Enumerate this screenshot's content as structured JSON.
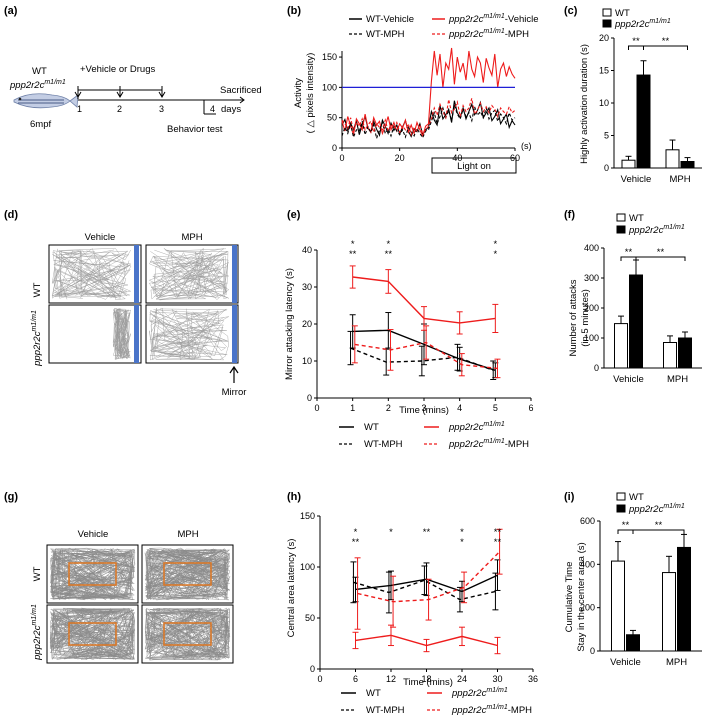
{
  "panel_labels": [
    "(a)",
    "(b)",
    "(c)",
    "(d)",
    "(e)",
    "(f)",
    "(g)",
    "(h)",
    "(i)"
  ],
  "timeline": {
    "genotype_line1": "WT",
    "genotype_line2_base": "ppp2r2c",
    "genotype_line2_sup": "m1/m1",
    "age": "6mpf",
    "treatment": "+Vehicle or Drugs",
    "sacrificed": "Sacrificed",
    "behavior": "Behavior test",
    "days_label": "days",
    "day_ticks": [
      "1",
      "2",
      "3",
      "4"
    ]
  },
  "colors": {
    "wt": "#000000",
    "mut": "#ee1c1c",
    "threshold": "#1f1fd6",
    "mirror": "#4a74c9",
    "center_box": "#d9792a",
    "track": "#9a9a9a"
  },
  "trajectory_d": {
    "col_vehicle": "Vehicle",
    "col_mph": "MPH",
    "row_wt": "WT",
    "row_mut_base": "ppp2r2c",
    "row_mut_sup": "m1/m1",
    "mirror_label": "Mirror"
  },
  "trajectory_g": {
    "col_vehicle": "Vehicle",
    "col_mph": "MPH",
    "row_wt": "WT",
    "row_mut_base": "ppp2r2c",
    "row_mut_sup": "m1/m1"
  },
  "legends": {
    "wt": "WT",
    "mut_base": "ppp2r2c",
    "mut_sup": "m1/m1",
    "wt_vehicle": "WT-Vehicle",
    "mut_vehicle_suffix": "-Vehicle",
    "wt_mph": "WT-MPH",
    "mut_mph_suffix": "-MPH"
  },
  "chart_data": [
    {
      "id": "b",
      "type": "line",
      "ylabel_line1": "Activity",
      "ylabel_line2": "( △ pixels intensity)",
      "xunit": "(s)",
      "xlim": [
        0,
        60
      ],
      "ylim": [
        0,
        160
      ],
      "xticks": [
        0,
        20,
        40,
        60
      ],
      "yticks": [
        0,
        50,
        100,
        150
      ],
      "threshold": 100,
      "annotation": "Light on",
      "light_on_start": 30,
      "series": [
        {
          "name": "WT-Vehicle",
          "color": "#000000",
          "dash": false,
          "values": [
            38,
            47,
            28,
            41,
            30,
            45,
            22,
            39,
            52,
            33,
            26,
            44,
            31,
            21,
            46,
            36,
            24,
            41,
            29,
            38,
            23,
            35,
            45,
            28,
            19,
            32,
            27,
            40,
            22,
            30,
            34,
            60,
            46,
            38,
            70,
            48,
            55,
            64,
            42,
            78,
            58,
            50,
            66,
            48,
            60,
            72,
            55,
            62,
            75,
            50,
            58,
            66,
            45,
            52,
            63,
            40,
            48,
            56,
            34,
            45,
            38
          ]
        },
        {
          "name": "ppp2r2c m1/m1-Vehicle",
          "color": "#ee1c1c",
          "dash": false,
          "values": [
            44,
            28,
            52,
            36,
            22,
            48,
            40,
            30,
            56,
            34,
            26,
            50,
            38,
            44,
            24,
            36,
            52,
            30,
            42,
            28,
            40,
            33,
            46,
            26,
            38,
            24,
            42,
            30,
            20,
            36,
            40,
            110,
            160,
            120,
            155,
            100,
            140,
            130,
            165,
            105,
            150,
            125,
            140,
            112,
            160,
            130,
            118,
            150,
            140,
            108,
            148,
            132,
            120,
            155,
            100,
            130,
            140,
            118,
            134,
            122,
            115
          ]
        },
        {
          "name": "WT-MPH",
          "color": "#000000",
          "dash": true,
          "values": [
            20,
            34,
            24,
            40,
            18,
            30,
            28,
            44,
            22,
            35,
            26,
            38,
            16,
            30,
            42,
            24,
            32,
            20,
            36,
            28,
            22,
            30,
            18,
            34,
            26,
            20,
            32,
            24,
            17,
            28,
            30,
            44,
            58,
            40,
            52,
            66,
            50,
            62,
            45,
            70,
            56,
            48,
            64,
            52,
            58,
            45,
            68,
            54,
            60,
            50,
            66,
            48,
            58,
            62,
            44,
            56,
            50,
            40,
            58,
            46,
            50
          ]
        },
        {
          "name": "ppp2r2c m1/m1-MPH",
          "color": "#ee1c1c",
          "dash": true,
          "values": [
            46,
            40,
            32,
            50,
            28,
            42,
            36,
            48,
            30,
            38,
            44,
            26,
            40,
            34,
            30,
            46,
            28,
            38,
            32,
            42,
            26,
            36,
            30,
            40,
            22,
            34,
            28,
            38,
            24,
            30,
            36,
            48,
            66,
            54,
            72,
            60,
            50,
            80,
            58,
            64,
            76,
            52,
            70,
            60,
            66,
            82,
            56,
            62,
            74,
            60,
            68,
            58,
            70,
            64,
            52,
            66,
            60,
            56,
            68,
            58,
            62
          ]
        }
      ]
    },
    {
      "id": "c",
      "type": "bar",
      "ylabel": "Highly activation duration (s)",
      "categories": [
        "Vehicle",
        "MPH"
      ],
      "ylim": [
        0,
        20
      ],
      "yticks": [
        0,
        5,
        10,
        15,
        20
      ],
      "series": [
        {
          "name": "WT",
          "fill": "#ffffff",
          "values": [
            1.2,
            2.8
          ],
          "errors": [
            0.6,
            1.5
          ]
        },
        {
          "name": "ppp2r2c m1/m1",
          "fill": "#000000",
          "values": [
            14.3,
            1.0
          ],
          "errors": [
            2.2,
            0.6
          ]
        }
      ],
      "sig": [
        "**",
        "**"
      ]
    },
    {
      "id": "e",
      "type": "line",
      "ylabel": "Mirror attacking latency (s)",
      "xlabel": "Time (mins)",
      "x": [
        1,
        2,
        3,
        4,
        5
      ],
      "xlim": [
        0,
        6
      ],
      "ylim": [
        0,
        40
      ],
      "xticks": [
        0,
        1,
        2,
        3,
        4,
        5,
        6
      ],
      "yticks": [
        0,
        10,
        20,
        30,
        40
      ],
      "series": [
        {
          "name": "WT",
          "color": "#000000",
          "dash": false,
          "values": [
            18,
            18.3,
            14.5,
            10.5,
            7.5
          ],
          "errors": [
            4.5,
            4.8,
            5.5,
            3.2,
            2.0
          ],
          "offset": 0
        },
        {
          "name": "ppp2r2c m1/m1",
          "color": "#ee1c1c",
          "dash": false,
          "values": [
            32.7,
            31.5,
            21.5,
            20.3,
            21.5
          ],
          "errors": [
            3.0,
            3.2,
            3.2,
            3.0,
            3.8
          ],
          "offset": 0
        },
        {
          "name": "WT-MPH",
          "color": "#000000",
          "dash": true,
          "values": [
            13.5,
            9.7,
            10,
            11,
            7.5
          ],
          "errors": [
            4.5,
            3.5,
            4.0,
            3.5,
            2.5
          ],
          "offset": -0.06
        },
        {
          "name": "ppp2r2c m1/m1-MPH",
          "color": "#ee1c1c",
          "dash": true,
          "values": [
            14.5,
            13,
            15,
            9,
            8
          ],
          "errors": [
            5.0,
            5.5,
            4.5,
            3.0,
            2.5
          ],
          "offset": 0.06
        }
      ],
      "stars": [
        {
          "x": 1,
          "black": "*",
          "red": "**"
        },
        {
          "x": 2,
          "black": "*",
          "red": "**"
        },
        {
          "x": 5,
          "black": "*",
          "red": "*"
        }
      ]
    },
    {
      "id": "f",
      "type": "bar",
      "ylabel_line1": "Number of attacks",
      "ylabel_line2": "(in 5 minutes)",
      "categories": [
        "Vehicle",
        "MPH"
      ],
      "ylim": [
        0,
        400
      ],
      "yticks": [
        0,
        100,
        200,
        300,
        400
      ],
      "series": [
        {
          "name": "WT",
          "fill": "#ffffff",
          "values": [
            148,
            85
          ],
          "errors": [
            25,
            22
          ]
        },
        {
          "name": "ppp2r2c m1/m1",
          "fill": "#000000",
          "values": [
            310,
            100
          ],
          "errors": [
            50,
            20
          ]
        }
      ],
      "sig": [
        "**",
        "**"
      ]
    },
    {
      "id": "h",
      "type": "line",
      "ylabel": "Central area latency (s)",
      "xlabel": "Time (mins)",
      "x": [
        6,
        12,
        18,
        24,
        30
      ],
      "xlim": [
        0,
        36
      ],
      "ylim": [
        0,
        150
      ],
      "xticks": [
        0,
        6,
        12,
        18,
        24,
        30,
        36
      ],
      "yticks": [
        0,
        50,
        100,
        150
      ],
      "series": [
        {
          "name": "WT",
          "color": "#000000",
          "dash": false,
          "values": [
            78,
            82,
            88,
            76,
            92
          ],
          "errors": [
            12,
            14,
            16,
            10,
            15
          ],
          "offset": 0
        },
        {
          "name": "ppp2r2c m1/m1",
          "color": "#ee1c1c",
          "dash": false,
          "values": [
            28,
            33,
            23,
            32,
            23
          ],
          "errors": [
            8,
            10,
            6,
            9,
            8
          ],
          "offset": 0
        },
        {
          "name": "WT-MPH",
          "color": "#000000",
          "dash": true,
          "values": [
            85,
            75,
            87,
            68,
            76
          ],
          "errors": [
            20,
            20,
            14,
            12,
            18
          ],
          "offset": -0.35
        },
        {
          "name": "ppp2r2c m1/m1-MPH",
          "color": "#ee1c1c",
          "dash": true,
          "values": [
            74,
            66,
            68,
            80,
            115
          ],
          "errors": [
            35,
            25,
            20,
            15,
            22
          ],
          "offset": 0.35
        }
      ],
      "stars": [
        {
          "x": 6,
          "black": "*",
          "red": "**"
        },
        {
          "x": 12,
          "black": "*",
          "red": ""
        },
        {
          "x": 18,
          "black": "**",
          "red": ""
        },
        {
          "x": 24,
          "black": "*",
          "red": "*"
        },
        {
          "x": 30,
          "black": "**",
          "red": "**"
        }
      ]
    },
    {
      "id": "i",
      "type": "bar",
      "ylabel_line1": "Cumulative Time",
      "ylabel_line2": "Stay in the center area (s)",
      "categories": [
        "Vehicle",
        "MPH"
      ],
      "ylim": [
        0,
        600
      ],
      "yticks": [
        0,
        200,
        400,
        600
      ],
      "series": [
        {
          "name": "WT",
          "fill": "#ffffff",
          "values": [
            415,
            362
          ],
          "errors": [
            90,
            75
          ]
        },
        {
          "name": "ppp2r2c m1/m1",
          "fill": "#000000",
          "values": [
            75,
            478
          ],
          "errors": [
            20,
            60
          ]
        }
      ],
      "sig": [
        "**",
        "**"
      ]
    }
  ]
}
